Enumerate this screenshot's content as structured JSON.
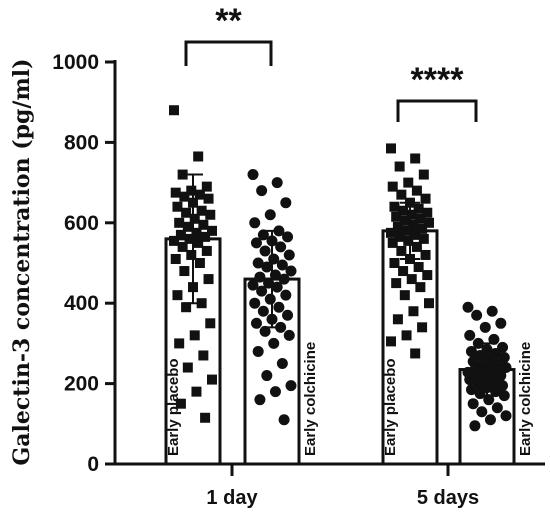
{
  "chart_data": {
    "type": "bar",
    "ylabel": "Galectin-3 concentration (pg/ml)",
    "ylim": [
      0,
      1000
    ],
    "yticks": [
      0,
      200,
      400,
      600,
      800,
      1000
    ],
    "groups": [
      "1 day",
      "5 days"
    ],
    "series": [
      {
        "label": "Early placebo",
        "group": "1 day",
        "mean": 560,
        "sd": 160,
        "marker": "square",
        "points": [
          880,
          765,
          720,
          690,
          680,
          675,
          670,
          665,
          660,
          650,
          640,
          630,
          625,
          620,
          610,
          600,
          595,
          590,
          580,
          575,
          570,
          565,
          560,
          555,
          550,
          540,
          530,
          520,
          510,
          500,
          480,
          460,
          440,
          420,
          400,
          390,
          350,
          320,
          300,
          270,
          240,
          210,
          180,
          150,
          115
        ]
      },
      {
        "label": "Early colchicine",
        "group": "1 day",
        "mean": 460,
        "sd": 120,
        "marker": "circle",
        "points": [
          720,
          700,
          680,
          650,
          620,
          600,
          580,
          570,
          565,
          555,
          550,
          540,
          530,
          520,
          510,
          500,
          495,
          490,
          480,
          470,
          465,
          460,
          450,
          445,
          440,
          430,
          420,
          410,
          400,
          390,
          380,
          370,
          360,
          350,
          340,
          330,
          320,
          300,
          280,
          250,
          220,
          195,
          180,
          160,
          110
        ]
      },
      {
        "label": "Early placebo",
        "group": "5 days",
        "mean": 580,
        "sd": 70,
        "marker": "square",
        "points": [
          785,
          760,
          740,
          720,
          700,
          690,
          680,
          670,
          660,
          650,
          640,
          635,
          630,
          625,
          620,
          615,
          610,
          605,
          600,
          595,
          590,
          585,
          580,
          575,
          570,
          565,
          560,
          555,
          550,
          540,
          530,
          520,
          510,
          500,
          490,
          480,
          470,
          460,
          450,
          440,
          420,
          400,
          380,
          360,
          340,
          320,
          305,
          275
        ]
      },
      {
        "label": "Early colchicine",
        "group": "5 days",
        "mean": 235,
        "sd": 65,
        "marker": "circle",
        "points": [
          390,
          380,
          370,
          350,
          340,
          320,
          310,
          300,
          290,
          285,
          280,
          275,
          270,
          265,
          260,
          255,
          250,
          245,
          240,
          238,
          235,
          232,
          230,
          228,
          225,
          222,
          220,
          215,
          210,
          205,
          200,
          195,
          190,
          185,
          180,
          175,
          170,
          160,
          150,
          140,
          130,
          120,
          110,
          95
        ]
      }
    ],
    "significance": [
      {
        "group": "1 day",
        "label": "**"
      },
      {
        "group": "5 days",
        "label": "****"
      }
    ]
  }
}
